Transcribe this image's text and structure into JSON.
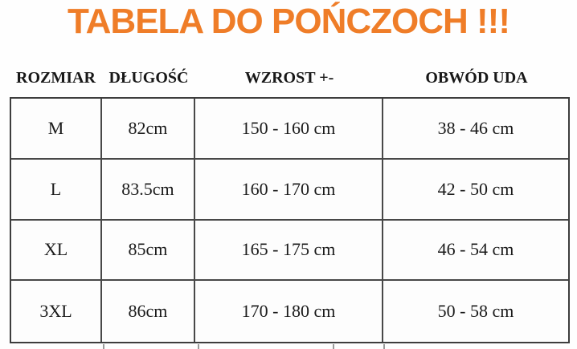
{
  "title": "TABELA DO POŃCZOCH !!!",
  "table": {
    "headers": [
      "ROZMIAR",
      "DŁUGOŚĆ",
      "WZROST +-",
      "OBWÓD UDA"
    ],
    "rows": [
      [
        "M",
        "82cm",
        "150 - 160 cm",
        "38 - 46 cm"
      ],
      [
        "L",
        "83.5cm",
        "160 - 170 cm",
        "42 - 50 cm"
      ],
      [
        "XL",
        "85cm",
        "165 - 175 cm",
        "46 - 54 cm"
      ],
      [
        "3XL",
        "86cm",
        "170 - 180 cm",
        "50 - 58 cm"
      ]
    ]
  },
  "colors": {
    "title_orange": "#ef7d28",
    "border_gray": "#484848",
    "text_black": "#1b1b1b",
    "background": "#fefefe"
  }
}
